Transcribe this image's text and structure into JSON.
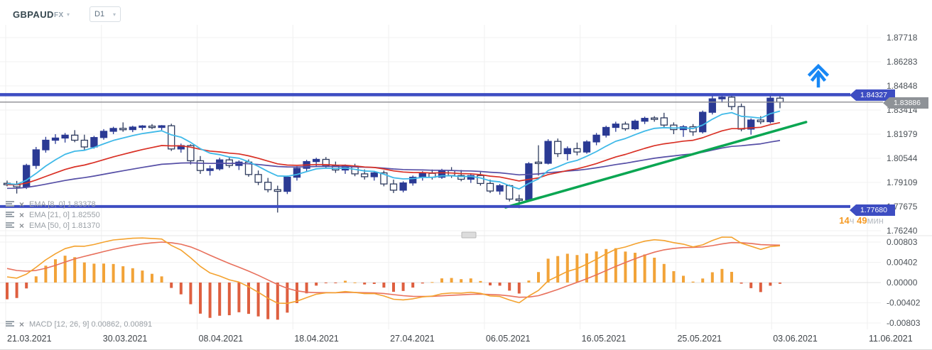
{
  "toolbar": {
    "symbol": "GBPAUD",
    "market": "FX",
    "timeframe": "D1"
  },
  "indicators": [
    {
      "text": "EMA [8, 0] 1.83378"
    },
    {
      "text": "EMA [21, 0] 1.82550"
    },
    {
      "text": "EMA [50, 0] 1.81370"
    }
  ],
  "macd_label": {
    "text": "MACD [12, 26, 9] 0.00862, 0.00891"
  },
  "axes": {
    "price_ticks": [
      "1.87718",
      "1.86283",
      "1.84848",
      "1.83414",
      "1.81979",
      "1.80544",
      "1.79109",
      "1.77675",
      "1.76240"
    ],
    "macd_ticks": [
      "0.00803",
      "0.00402",
      "0.00000",
      "-0.00402",
      "-0.00803"
    ],
    "date_ticks": [
      "21.03.2021",
      "30.03.2021",
      "08.04.2021",
      "18.04.2021",
      "27.04.2021",
      "06.05.2021",
      "16.05.2021",
      "25.05.2021",
      "03.06.2021",
      "11.06.2021"
    ]
  },
  "badges": {
    "resistance": "1.84327",
    "current": "1.83886",
    "support": "1.77680"
  },
  "countdown": {
    "hours": "14",
    "h_unit": "ч",
    "minutes": "49",
    "m_unit": "мин"
  },
  "colors": {
    "bull": "#2b3a94",
    "bear_border": "#2e3b5e",
    "ema8": "#3fb9e8",
    "ema21": "#d93025",
    "ema50": "#564fa6",
    "level_line": "#3d4dc2",
    "current_line": "#8c8c92",
    "trendline": "#0aa652",
    "macd_line": "#f4a22e",
    "signal_line": "#e8705c",
    "hist_pos": "#f2a338",
    "hist_neg": "#de5f3f",
    "arrow": "#1787f5"
  },
  "chart_data": {
    "type": "candlestick",
    "symbol": "GBPAUD",
    "timeframe": "D1",
    "price_axis_range": [
      1.7624,
      1.87718
    ],
    "macd_axis_range": [
      -0.00803,
      0.00803
    ],
    "grid": true,
    "candles": [
      [
        1.7905,
        1.7922,
        1.7888,
        1.7898
      ],
      [
        1.7898,
        1.792,
        1.7845,
        1.7885
      ],
      [
        1.7885,
        1.8022,
        1.7872,
        1.8012
      ],
      [
        1.8012,
        1.8122,
        1.7992,
        1.8105
      ],
      [
        1.8105,
        1.8182,
        1.8088,
        1.8162
      ],
      [
        1.8162,
        1.8198,
        1.814,
        1.8175
      ],
      [
        1.8175,
        1.8205,
        1.8148,
        1.8192
      ],
      [
        1.8192,
        1.8222,
        1.815,
        1.8162
      ],
      [
        1.8162,
        1.8195,
        1.8105,
        1.8122
      ],
      [
        1.8122,
        1.8188,
        1.8112,
        1.8178
      ],
      [
        1.8178,
        1.8228,
        1.8165,
        1.8215
      ],
      [
        1.8215,
        1.8242,
        1.8198,
        1.8232
      ],
      [
        1.8232,
        1.8268,
        1.8212,
        1.8225
      ],
      [
        1.8225,
        1.8248,
        1.821,
        1.824
      ],
      [
        1.824,
        1.8252,
        1.8222,
        1.8245
      ],
      [
        1.8245,
        1.8258,
        1.8228,
        1.8238
      ],
      [
        1.8238,
        1.8252,
        1.8222,
        1.8248
      ],
      [
        1.8248,
        1.826,
        1.8098,
        1.811
      ],
      [
        1.811,
        1.8142,
        1.8088,
        1.813
      ],
      [
        1.813,
        1.8138,
        1.8018,
        1.804
      ],
      [
        1.804,
        1.8068,
        1.7962,
        1.7982
      ],
      [
        1.7982,
        1.8012,
        1.7952,
        1.7992
      ],
      [
        1.7992,
        1.8058,
        1.7982,
        1.8045
      ],
      [
        1.8045,
        1.8062,
        1.7998,
        1.8012
      ],
      [
        1.8012,
        1.8042,
        1.7985,
        1.8032
      ],
      [
        1.8032,
        1.8048,
        1.7945,
        1.7958
      ],
      [
        1.7958,
        1.7982,
        1.7895,
        1.7912
      ],
      [
        1.7912,
        1.7938,
        1.7852,
        1.7868
      ],
      [
        1.7868,
        1.7892,
        1.7732,
        1.7858
      ],
      [
        1.7858,
        1.7952,
        1.7842,
        1.7942
      ],
      [
        1.7942,
        1.8008,
        1.7922,
        1.7995
      ],
      [
        1.7995,
        1.8045,
        1.7975,
        1.8035
      ],
      [
        1.8035,
        1.8058,
        1.8002,
        1.8048
      ],
      [
        1.8048,
        1.8062,
        1.7995,
        1.801
      ],
      [
        1.801,
        1.8035,
        1.7968,
        1.7985
      ],
      [
        1.7985,
        1.8018,
        1.7962,
        1.8008
      ],
      [
        1.8008,
        1.8022,
        1.7948,
        1.7962
      ],
      [
        1.7962,
        1.7988,
        1.7928,
        1.7945
      ],
      [
        1.7945,
        1.7978,
        1.7922,
        1.7968
      ],
      [
        1.7968,
        1.7982,
        1.7888,
        1.7902
      ],
      [
        1.7902,
        1.7928,
        1.7848,
        1.7865
      ],
      [
        1.7865,
        1.7918,
        1.7852,
        1.7908
      ],
      [
        1.7908,
        1.7952,
        1.7892,
        1.7942
      ],
      [
        1.7942,
        1.7978,
        1.7922,
        1.7965
      ],
      [
        1.7965,
        1.7988,
        1.7928,
        1.7942
      ],
      [
        1.7942,
        1.7992,
        1.7932,
        1.7982
      ],
      [
        1.7982,
        1.8002,
        1.7938,
        1.7952
      ],
      [
        1.7952,
        1.7985,
        1.7918,
        1.793
      ],
      [
        1.793,
        1.7962,
        1.7908,
        1.7952
      ],
      [
        1.7952,
        1.7972,
        1.7892,
        1.7905
      ],
      [
        1.7905,
        1.7928,
        1.7848,
        1.786
      ],
      [
        1.786,
        1.7902,
        1.7838,
        1.7892
      ],
      [
        1.7892,
        1.7898,
        1.7798,
        1.7812
      ],
      [
        1.7812,
        1.7838,
        1.7758,
        1.7805
      ],
      [
        1.7808,
        1.8032,
        1.7798,
        1.8022
      ],
      [
        1.803,
        1.8132,
        1.7952,
        1.8025
      ],
      [
        1.8025,
        1.8168,
        1.8018,
        1.8155
      ],
      [
        1.8155,
        1.8172,
        1.8062,
        1.8082
      ],
      [
        1.8082,
        1.8125,
        1.8042,
        1.8112
      ],
      [
        1.8112,
        1.8148,
        1.8072,
        1.8092
      ],
      [
        1.8092,
        1.8162,
        1.8082,
        1.8152
      ],
      [
        1.8152,
        1.8205,
        1.8132,
        1.8192
      ],
      [
        1.8192,
        1.8248,
        1.8178,
        1.8238
      ],
      [
        1.8238,
        1.8272,
        1.8212,
        1.8258
      ],
      [
        1.8258,
        1.8272,
        1.8218,
        1.823
      ],
      [
        1.823,
        1.8285,
        1.8222,
        1.8275
      ],
      [
        1.8275,
        1.8302,
        1.8258,
        1.8292
      ],
      [
        1.8292,
        1.8305,
        1.8272,
        1.8288
      ],
      [
        1.8295,
        1.8325,
        1.8238,
        1.8252
      ],
      [
        1.8252,
        1.8268,
        1.8198,
        1.8225
      ],
      [
        1.8225,
        1.8252,
        1.8182,
        1.8242
      ],
      [
        1.8242,
        1.8258,
        1.8188,
        1.8212
      ],
      [
        1.8212,
        1.8338,
        1.8202,
        1.8328
      ],
      [
        1.8328,
        1.843,
        1.8315,
        1.8408
      ],
      [
        1.8408,
        1.843,
        1.8385,
        1.8418
      ],
      [
        1.8418,
        1.8435,
        1.8342,
        1.8362
      ],
      [
        1.8362,
        1.838,
        1.8215,
        1.8228
      ],
      [
        1.8228,
        1.8292,
        1.8195,
        1.8282
      ],
      [
        1.8282,
        1.8305,
        1.8258,
        1.8272
      ],
      [
        1.8272,
        1.8428,
        1.8262,
        1.8412
      ],
      [
        1.8412,
        1.8436,
        1.8352,
        1.83886
      ]
    ],
    "overlays": [
      {
        "type": "EMA",
        "period": 8
      },
      {
        "type": "EMA",
        "period": 21
      },
      {
        "type": "EMA",
        "period": 50
      }
    ],
    "macd": {
      "fast": 12,
      "slow": 26,
      "signal": 9,
      "last_values": "0.00862, 0.00891"
    },
    "hlines": [
      {
        "price": 1.84327,
        "role": "resistance"
      },
      {
        "price": 1.7768,
        "role": "support"
      }
    ],
    "current_price": 1.83886,
    "trendline": {
      "i1": 51.6,
      "p1": 1.7763,
      "i2": 82.7,
      "p2": 1.827
    }
  }
}
